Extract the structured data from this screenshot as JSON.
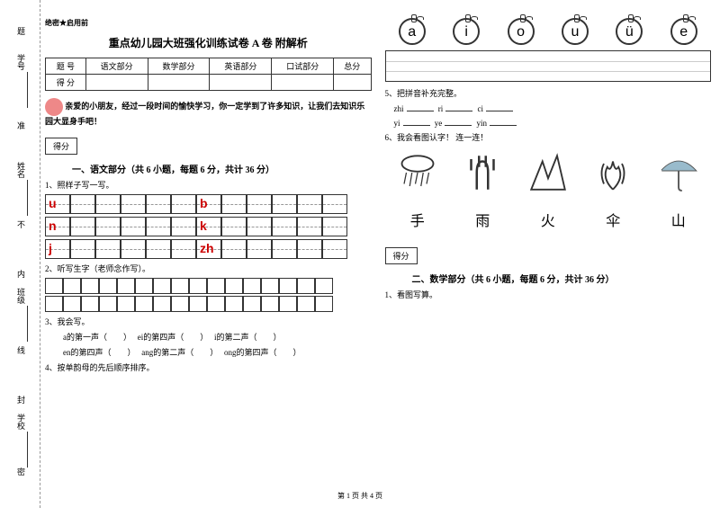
{
  "margin": {
    "labels": [
      "学号",
      "姓名",
      "班级",
      "学校"
    ],
    "marks": [
      "题",
      "准",
      "不",
      "内",
      "线",
      "封",
      "密"
    ]
  },
  "classified": "绝密★启用前",
  "title": "重点幼儿园大班强化训练试卷 A 卷 附解析",
  "score_table": {
    "headers": [
      "题 号",
      "语文部分",
      "数学部分",
      "英语部分",
      "口试部分",
      "总分"
    ],
    "row_label": "得 分"
  },
  "intro": "亲爱的小朋友，经过一段时间的愉快学习，你一定学到了许多知识，让我们去知识乐园大显身手吧！",
  "score_label": "得分",
  "sections": {
    "chinese": "一、语文部分（共 6 小题，每题 6 分，共计 36 分）",
    "math": "二、数学部分（共 6 小题，每题 6 分，共计 36 分）"
  },
  "questions": {
    "q1": "1、照样子写一写。",
    "q2": "2、听写生字（老师念作写）。",
    "q3": "3、我会写。",
    "q3_items": [
      "a的第一声（　　）",
      "ei的第四声（　　）",
      "i的第二声（　　）",
      "en的第四声（　　）",
      "ang的第二声（　　）",
      "ong的第四声（　　）"
    ],
    "q4": "4、按单韵母的先后顺序排序。",
    "q5": "5、把拼音补充完整。",
    "q5_items": [
      "zhi",
      "ri",
      "ci",
      "yi",
      "ye",
      "yin"
    ],
    "q6": "6、我会看图认字！ 连一连！",
    "m1": "1、看图写算。"
  },
  "pinyin_letters": [
    [
      "u",
      "b"
    ],
    [
      "n",
      "k"
    ],
    [
      "j",
      "zh"
    ]
  ],
  "apples": [
    "a",
    "i",
    "o",
    "u",
    "ü",
    "e"
  ],
  "chars": [
    "手",
    "雨",
    "火",
    "伞",
    "山"
  ],
  "footer": "第 1 页 共 4 页"
}
